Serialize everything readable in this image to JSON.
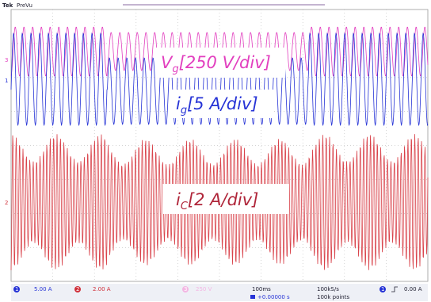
{
  "header": {
    "brand": "Tek",
    "mode": "PreVu"
  },
  "labels": [
    {
      "main": "V",
      "sub": "g",
      "rest": "[250 V/div]"
    },
    {
      "main": "i",
      "sub": "g",
      "rest": "[5 A/div]"
    },
    {
      "main": "i",
      "sub": "C",
      "rest": "[2 A/div]"
    }
  ],
  "markers": [
    "3",
    "1",
    "2"
  ],
  "status": {
    "channels": [
      {
        "num": "1",
        "scale": "5.00 A"
      },
      {
        "num": "2",
        "scale": "2.00 A"
      },
      {
        "num": "3",
        "scale": "250 V"
      }
    ],
    "timebase": "100ms",
    "offset": "+0.00000 s",
    "rate": "100kS/s",
    "points": "100k points",
    "trigger": {
      "channel": "1",
      "level": "0.00 A"
    }
  }
}
